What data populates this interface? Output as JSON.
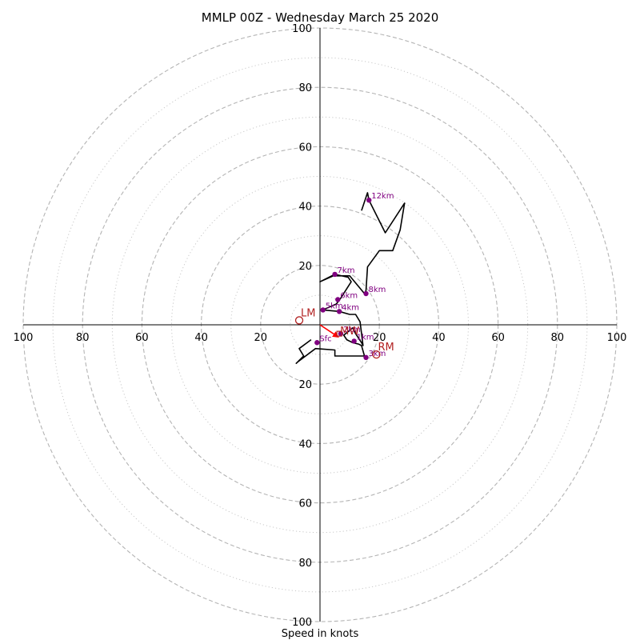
{
  "chart_data": {
    "type": "hodograph",
    "title": "MMLP 00Z - Wednesday March 25 2020",
    "xlabel": "Speed in knots",
    "range": 100,
    "tick_labels": {
      "right": [
        "20",
        "40",
        "60",
        "80",
        "100"
      ],
      "left": [
        "20",
        "40",
        "60",
        "80",
        "100"
      ],
      "up": [
        "20",
        "40",
        "60",
        "80",
        "100"
      ],
      "down": [
        "20",
        "40",
        "60",
        "80",
        "100"
      ]
    },
    "ring_values_major": [
      20,
      40,
      60,
      80,
      100
    ],
    "ring_values_minor": [
      10,
      30,
      50,
      70,
      90
    ],
    "grid": true,
    "line": [
      [
        -3,
        -5
      ],
      [
        -7,
        -8
      ],
      [
        -5.5,
        -10.5
      ],
      [
        -8,
        -13
      ],
      [
        -7.5,
        -12.5
      ],
      [
        -1.5,
        -8
      ],
      [
        5,
        -8.5
      ],
      [
        5,
        -10.5
      ],
      [
        15,
        -10.5
      ],
      [
        14,
        -7
      ],
      [
        13,
        -6.5
      ],
      [
        11,
        -6
      ],
      [
        9,
        -5
      ],
      [
        8,
        -3.5
      ],
      [
        11,
        -1
      ],
      [
        12,
        -3
      ],
      [
        14,
        -6
      ],
      [
        14.5,
        -7
      ],
      [
        13.5,
        1
      ],
      [
        12,
        3.5
      ],
      [
        10,
        3.5
      ],
      [
        6.5,
        4.5
      ],
      [
        1,
        5
      ],
      [
        5.5,
        7
      ],
      [
        7,
        9
      ],
      [
        10.5,
        14.5
      ],
      [
        9.5,
        16
      ],
      [
        5,
        17
      ],
      [
        0,
        14.5
      ],
      [
        4.5,
        16.5
      ],
      [
        10,
        16.5
      ],
      [
        15,
        10.5
      ],
      [
        15.5,
        11.5
      ],
      [
        16,
        19.5
      ],
      [
        20,
        25
      ],
      [
        24.5,
        25
      ],
      [
        27,
        32
      ],
      [
        28.5,
        41
      ],
      [
        22,
        31
      ],
      [
        16.5,
        42
      ],
      [
        16,
        44.5
      ],
      [
        14,
        38.5
      ]
    ],
    "height_markers": [
      {
        "label": "Sfc",
        "x": -1,
        "y": -6
      },
      {
        "label": "1km",
        "x": 11.5,
        "y": -5.5
      },
      {
        "label": "2km",
        "x": 7,
        "y": -3
      },
      {
        "label": "3km",
        "x": 15.5,
        "y": -11
      },
      {
        "label": "4km",
        "x": 6.5,
        "y": 4.5
      },
      {
        "label": "5km",
        "x": 1,
        "y": 5
      },
      {
        "label": "6km",
        "x": 6,
        "y": 8.5
      },
      {
        "label": "7km",
        "x": 5,
        "y": 17
      },
      {
        "label": "8km",
        "x": 15.5,
        "y": 10.5
      },
      {
        "label": "12km",
        "x": 16.5,
        "y": 42
      }
    ],
    "storm_motion": [
      {
        "label": "LM",
        "x": -7,
        "y": 1.5
      },
      {
        "label": "RM",
        "x": 19,
        "y": -10
      }
    ],
    "mean_wind": {
      "label": "MW",
      "x": 6.5,
      "y": -3
    },
    "storm_motion_vector": {
      "x": 6,
      "y": -4
    }
  }
}
